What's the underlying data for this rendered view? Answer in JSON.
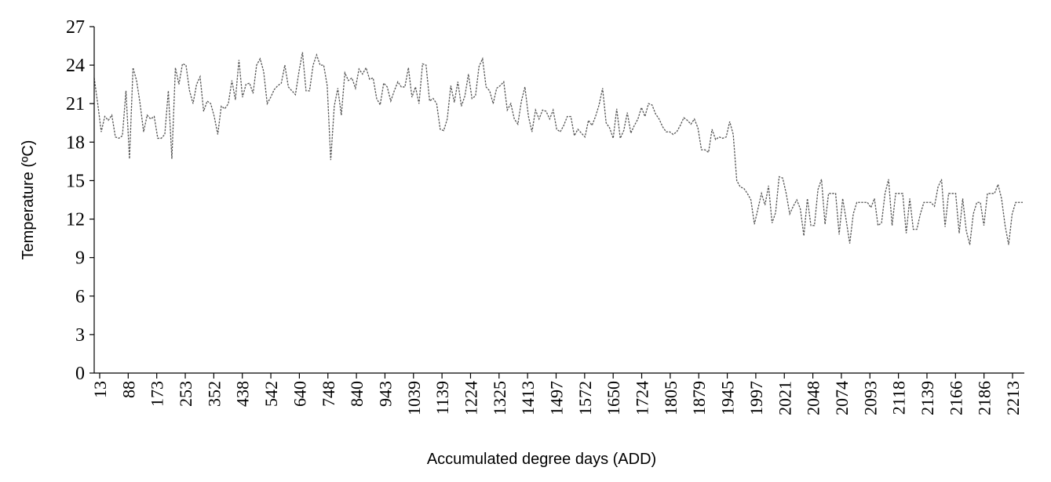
{
  "chart_data": {
    "type": "line",
    "xlabel": "Accumulated degree days (ADD)",
    "ylabel": "Temperature (ºC)",
    "ylim": [
      0,
      27
    ],
    "yticks": [
      0,
      3,
      6,
      9,
      12,
      15,
      18,
      21,
      24,
      27
    ],
    "grid": false,
    "xtick_labels": [
      "13",
      "88",
      "173",
      "253",
      "352",
      "438",
      "542",
      "640",
      "748",
      "840",
      "943",
      "1039",
      "1139",
      "1224",
      "1325",
      "1413",
      "1497",
      "1572",
      "1650",
      "1724",
      "1805",
      "1879",
      "1945",
      "1997",
      "2021",
      "2048",
      "2074",
      "2093",
      "2118",
      "2139",
      "2166",
      "2186",
      "2213"
    ],
    "series": [
      {
        "line_style": "dashed",
        "color": "#555555",
        "values": [
          23.0,
          21.0,
          18.8,
          20.0,
          19.7,
          20.1,
          18.4,
          18.3,
          18.5,
          22.0,
          16.7,
          23.8,
          22.8,
          21.0,
          18.8,
          20.1,
          19.8,
          20.0,
          18.3,
          18.3,
          18.6,
          22.0,
          16.7,
          23.8,
          22.5,
          24.1,
          24.0,
          22.0,
          21.0,
          22.5,
          23.1,
          20.4,
          21.2,
          21.0,
          20.0,
          18.6,
          20.8,
          20.6,
          21.0,
          22.8,
          21.3,
          24.4,
          21.5,
          22.5,
          22.6,
          21.8,
          24.0,
          24.5,
          23.5,
          21.0,
          21.5,
          22.1,
          22.4,
          22.6,
          24.0,
          22.3,
          22.0,
          21.7,
          23.5,
          25.0,
          22.0,
          22.0,
          24.0,
          24.8,
          24.0,
          24.0,
          22.4,
          16.6,
          20.8,
          22.2,
          20.1,
          23.4,
          22.8,
          23.0,
          22.2,
          23.7,
          23.3,
          23.8,
          22.9,
          23.0,
          21.4,
          20.9,
          22.6,
          22.3,
          21.2,
          22.0,
          22.7,
          22.3,
          22.3,
          23.8,
          21.5,
          22.3,
          21.0,
          24.1,
          24.0,
          21.2,
          21.4,
          21.0,
          19.0,
          18.9,
          19.8,
          22.4,
          21.1,
          22.7,
          20.8,
          21.6,
          23.3,
          21.4,
          21.6,
          23.9,
          24.5,
          22.3,
          22.0,
          21.0,
          22.2,
          22.4,
          22.7,
          20.5,
          21.0,
          19.8,
          19.4,
          21.2,
          22.3,
          20.0,
          18.8,
          20.5,
          19.8,
          20.5,
          20.4,
          19.8,
          20.5,
          19.0,
          18.8,
          19.3,
          20.0,
          20.0,
          18.5,
          19.0,
          18.7,
          18.4,
          19.7,
          19.3,
          20.0,
          20.9,
          22.2,
          19.5,
          19.1,
          18.3,
          20.6,
          18.3,
          18.9,
          20.3,
          18.7,
          19.3,
          19.8,
          20.7,
          20.0,
          21.0,
          20.9,
          20.2,
          19.8,
          19.2,
          18.8,
          18.8,
          18.6,
          18.8,
          19.3,
          19.9,
          19.7,
          19.4,
          19.8,
          19.1,
          17.4,
          17.4,
          17.2,
          19.0,
          18.2,
          18.4,
          18.3,
          18.4,
          19.6,
          18.6,
          15.0,
          14.5,
          14.4,
          14.0,
          13.5,
          11.6,
          12.8,
          14.0,
          13.1,
          14.6,
          11.7,
          12.5,
          15.3,
          15.2,
          14.0,
          12.4,
          13.0,
          13.5,
          12.8,
          10.7,
          13.6,
          11.5,
          11.5,
          14.3,
          15.1,
          11.6,
          14.0,
          14.0,
          14.0,
          10.8,
          13.6,
          11.9,
          10.1,
          12.4,
          13.3,
          13.3,
          13.3,
          13.3,
          12.9,
          13.6,
          11.5,
          11.7,
          14.0,
          15.1,
          11.5,
          14.0,
          14.0,
          14.0,
          10.9,
          13.6,
          11.2,
          11.2,
          12.4,
          13.3,
          13.3,
          13.3,
          13.0,
          14.5,
          15.1,
          11.4,
          14.0,
          14.0,
          14.0,
          10.9,
          13.6,
          11.1,
          10.0,
          12.4,
          13.3,
          13.3,
          11.5,
          14.0,
          14.0,
          14.0,
          14.7,
          13.6,
          11.5,
          10.0,
          12.4,
          13.3,
          13.3,
          13.3
        ]
      }
    ]
  }
}
